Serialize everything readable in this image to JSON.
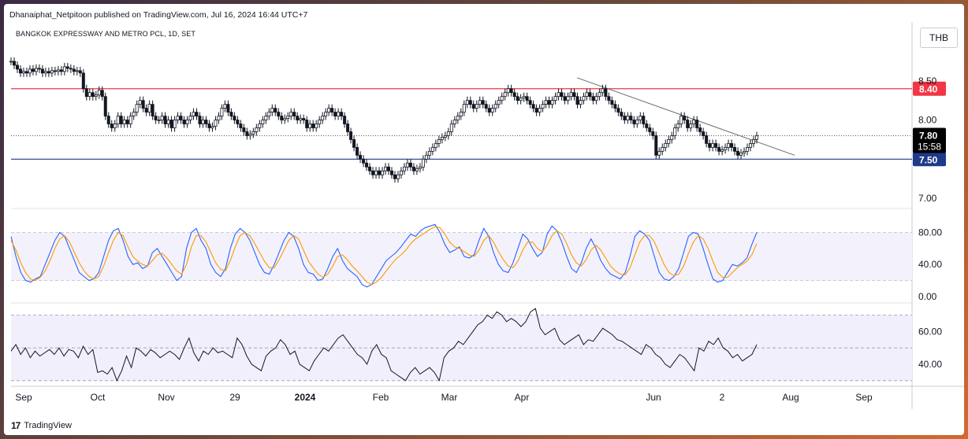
{
  "publisher": "Dhanaiphat_Netpitoon published on TradingView.com, Jul 16, 2024 16:44 UTC+7",
  "symbol_title": "BANGKOK EXPRESSWAY AND METRO PCL, 1D, SET",
  "currency": "THB",
  "brand": "TradingView",
  "colors": {
    "up": "#131722",
    "down": "#131722",
    "resistance": "#f23645",
    "support": "#1e3a8a",
    "stoch_k": "#2962ff",
    "stoch_d": "#ff9800",
    "rsi": "#131722",
    "band": "#f1effb",
    "trend": "#6b6b6b"
  },
  "chart_data": [
    {
      "type": "candlestick",
      "title": "BANGKOK EXPRESSWAY AND METRO PCL, 1D, SET",
      "y_ticks": [
        "8.50",
        "8.00",
        "7.00"
      ],
      "ylim": [
        6.9,
        8.95
      ],
      "x_ticks": [
        "Sep",
        "Oct",
        "Nov",
        "29",
        "2024",
        "Feb",
        "Mar",
        "Apr",
        "Jun",
        "2",
        "Aug",
        "Sep"
      ],
      "levels": [
        {
          "label": "8.40",
          "value": 8.4,
          "color": "#f23645"
        },
        {
          "label": "7.50",
          "value": 7.5,
          "color": "#1e3a8a"
        }
      ],
      "last_price": {
        "label": "7.80",
        "countdown": "15:58",
        "value": 7.8
      },
      "trendline": {
        "start": [
          0,
          8.54
        ],
        "end": [
          1,
          7.55
        ]
      },
      "close": [
        8.75,
        8.7,
        8.65,
        8.6,
        8.62,
        8.6,
        8.65,
        8.62,
        8.66,
        8.65,
        8.6,
        8.62,
        8.6,
        8.63,
        8.62,
        8.64,
        8.62,
        8.68,
        8.66,
        8.65,
        8.62,
        8.63,
        8.6,
        8.4,
        8.3,
        8.35,
        8.3,
        8.32,
        8.38,
        8.3,
        8.05,
        7.95,
        7.9,
        7.95,
        8.05,
        7.95,
        8.0,
        7.95,
        8.05,
        8.1,
        8.2,
        8.25,
        8.15,
        8.1,
        8.2,
        8.05,
        8.0,
        8.0,
        8.05,
        7.95,
        8.0,
        7.9,
        8.0,
        8.05,
        8.0,
        7.95,
        8.0,
        8.05,
        8.1,
        8.05,
        7.95,
        8.0,
        7.95,
        7.9,
        7.92,
        8.0,
        8.05,
        8.15,
        8.2,
        8.1,
        8.05,
        8.0,
        7.95,
        7.9,
        7.85,
        7.8,
        7.82,
        7.85,
        7.9,
        7.95,
        8.0,
        8.05,
        8.1,
        8.15,
        8.1,
        8.05,
        8.0,
        8.02,
        8.05,
        8.1,
        8.05,
        8.0,
        8.02,
        8.0,
        7.9,
        7.95,
        7.9,
        7.95,
        8.0,
        8.05,
        8.1,
        8.15,
        8.1,
        8.05,
        8.1,
        8.05,
        7.95,
        7.85,
        7.75,
        7.65,
        7.55,
        7.5,
        7.45,
        7.4,
        7.35,
        7.3,
        7.35,
        7.3,
        7.35,
        7.4,
        7.35,
        7.3,
        7.25,
        7.3,
        7.35,
        7.4,
        7.45,
        7.4,
        7.35,
        7.38,
        7.4,
        7.5,
        7.55,
        7.6,
        7.65,
        7.7,
        7.75,
        7.78,
        7.8,
        7.85,
        7.95,
        8.0,
        8.05,
        8.1,
        8.2,
        8.25,
        8.2,
        8.15,
        8.2,
        8.25,
        8.2,
        8.15,
        8.1,
        8.15,
        8.2,
        8.25,
        8.3,
        8.35,
        8.4,
        8.35,
        8.3,
        8.25,
        8.28,
        8.3,
        8.25,
        8.2,
        8.15,
        8.1,
        8.15,
        8.2,
        8.25,
        8.2,
        8.25,
        8.3,
        8.35,
        8.3,
        8.25,
        8.3,
        8.35,
        8.3,
        8.2,
        8.25,
        8.3,
        8.35,
        8.3,
        8.25,
        8.3,
        8.35,
        8.4,
        8.3,
        8.25,
        8.2,
        8.15,
        8.1,
        8.05,
        8.0,
        8.05,
        8.0,
        7.95,
        8.0,
        8.05,
        7.95,
        7.9,
        7.85,
        7.8,
        7.55,
        7.6,
        7.65,
        7.7,
        7.75,
        7.8,
        7.9,
        7.95,
        8.05,
        8.0,
        7.9,
        7.95,
        8.0,
        7.9,
        7.85,
        7.8,
        7.7,
        7.65,
        7.7,
        7.65,
        7.6,
        7.62,
        7.65,
        7.7,
        7.65,
        7.6,
        7.55,
        7.58,
        7.6,
        7.65,
        7.7,
        7.75,
        7.8
      ]
    },
    {
      "type": "line",
      "y_ticks": [
        "80.00",
        "40.00",
        "0.00"
      ],
      "ylim": [
        -5,
        105
      ],
      "levels": [
        80,
        50,
        20
      ],
      "series": [
        {
          "values": [
            75,
            50,
            30,
            20,
            18,
            22,
            25,
            40,
            55,
            70,
            80,
            75,
            60,
            45,
            30,
            25,
            20,
            22,
            30,
            50,
            70,
            82,
            85,
            70,
            50,
            40,
            42,
            35,
            38,
            55,
            60,
            50,
            40,
            30,
            20,
            25,
            60,
            80,
            85,
            70,
            60,
            40,
            30,
            25,
            35,
            60,
            78,
            85,
            80,
            70,
            55,
            40,
            30,
            28,
            40,
            55,
            70,
            80,
            75,
            60,
            40,
            30,
            28,
            20,
            22,
            35,
            50,
            60,
            45,
            35,
            30,
            25,
            15,
            12,
            15,
            25,
            35,
            45,
            50,
            55,
            62,
            70,
            78,
            75,
            82,
            86,
            88,
            90,
            80,
            65,
            55,
            58,
            62,
            50,
            48,
            52,
            70,
            85,
            75,
            55,
            40,
            32,
            30,
            42,
            60,
            78,
            72,
            60,
            50,
            55,
            78,
            88,
            82,
            68,
            50,
            35,
            30,
            42,
            60,
            72,
            60,
            45,
            35,
            28,
            25,
            22,
            30,
            50,
            75,
            82,
            78,
            70,
            50,
            30,
            22,
            20,
            25,
            35,
            55,
            75,
            80,
            78,
            60,
            40,
            22,
            18,
            20,
            30,
            40,
            38,
            42,
            48,
            65,
            80
          ]
        },
        {
          "values": [
            70,
            58,
            42,
            30,
            22,
            20,
            24,
            32,
            45,
            60,
            72,
            76,
            68,
            55,
            42,
            32,
            25,
            22,
            25,
            38,
            55,
            70,
            80,
            76,
            62,
            50,
            44,
            40,
            38,
            45,
            52,
            54,
            48,
            40,
            32,
            28,
            40,
            62,
            76,
            76,
            68,
            55,
            42,
            34,
            32,
            45,
            62,
            76,
            80,
            76,
            66,
            55,
            44,
            36,
            36,
            46,
            58,
            70,
            76,
            72,
            58,
            44,
            36,
            28,
            24,
            28,
            38,
            50,
            52,
            46,
            38,
            32,
            25,
            18,
            15,
            18,
            24,
            32,
            40,
            47,
            52,
            58,
            66,
            72,
            76,
            80,
            84,
            87,
            86,
            78,
            68,
            62,
            60,
            56,
            52,
            50,
            58,
            70,
            76,
            68,
            56,
            46,
            38,
            36,
            44,
            58,
            68,
            68,
            60,
            56,
            64,
            76,
            82,
            78,
            66,
            52,
            42,
            38,
            46,
            58,
            64,
            58,
            48,
            38,
            32,
            28,
            27,
            36,
            52,
            68,
            76,
            76,
            68,
            54,
            40,
            30,
            26,
            28,
            38,
            54,
            68,
            76,
            72,
            60,
            44,
            30,
            24,
            24,
            30,
            36,
            40,
            44,
            52,
            66
          ]
        }
      ]
    },
    {
      "type": "line",
      "y_ticks": [
        "60.00",
        "40.00"
      ],
      "ylim": [
        28,
        76
      ],
      "levels": [
        70,
        50,
        30
      ],
      "series": [
        {
          "values": [
            48,
            52,
            46,
            50,
            44,
            48,
            45,
            47,
            49,
            46,
            50,
            45,
            49,
            48,
            44,
            51,
            46,
            49,
            35,
            36,
            34,
            38,
            30,
            36,
            45,
            38,
            50,
            48,
            45,
            49,
            47,
            44,
            46,
            48,
            46,
            43,
            50,
            56,
            47,
            42,
            48,
            46,
            50,
            47,
            48,
            46,
            44,
            56,
            52,
            45,
            40,
            38,
            36,
            45,
            48,
            50,
            55,
            52,
            46,
            48,
            40,
            38,
            36,
            42,
            46,
            50,
            48,
            52,
            56,
            58,
            54,
            50,
            46,
            44,
            40,
            48,
            52,
            46,
            44,
            36,
            34,
            32,
            30,
            35,
            38,
            34,
            36,
            38,
            35,
            30,
            44,
            48,
            50,
            54,
            52,
            56,
            60,
            64,
            66,
            70,
            68,
            72,
            70,
            66,
            68,
            66,
            63,
            66,
            72,
            74,
            62,
            58,
            60,
            62,
            55,
            52,
            54,
            56,
            58,
            52,
            55,
            54,
            58,
            62,
            60,
            58,
            55,
            54,
            52,
            50,
            48,
            46,
            52,
            50,
            46,
            44,
            40,
            38,
            42,
            46,
            44,
            40,
            36,
            50,
            48,
            54,
            52,
            56,
            50,
            48,
            44,
            46,
            42,
            44,
            46,
            52
          ]
        }
      ]
    }
  ]
}
